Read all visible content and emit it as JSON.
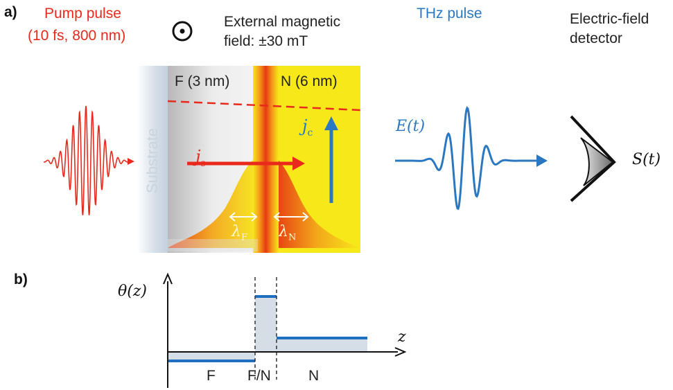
{
  "panel_a": {
    "tag": "a)",
    "pump_title": "Pump pulse",
    "pump_params": "(10 fs, 800 nm)",
    "field_line1": "External magnetic",
    "field_line2": "field: ±30 mT",
    "thz_title": "THz pulse",
    "detector_line1": "Electric-field",
    "detector_line2": "detector",
    "substrate": "Substrate",
    "f_layer": "F (3 nm)",
    "n_layer": "N (6 nm)",
    "js": "j",
    "js_sub": "s",
    "jc": "j",
    "jc_sub": "c",
    "lambda_f": "λ",
    "lambda_f_sub": "F",
    "lambda_n": "λ",
    "lambda_n_sub": "N",
    "field_label": "E(t)",
    "signal_label": "S(t)"
  },
  "panel_b": {
    "tag": "b)",
    "ylabel": "θ(z)",
    "xlabel": "z",
    "region_f": "F",
    "region_fn": "F/N",
    "region_n": "N"
  },
  "colors": {
    "pump_red": "#e8291c",
    "thz_blue": "#2a78c2",
    "n_yellow": "#f7e81a",
    "profile_blue": "#1f6fc0"
  }
}
